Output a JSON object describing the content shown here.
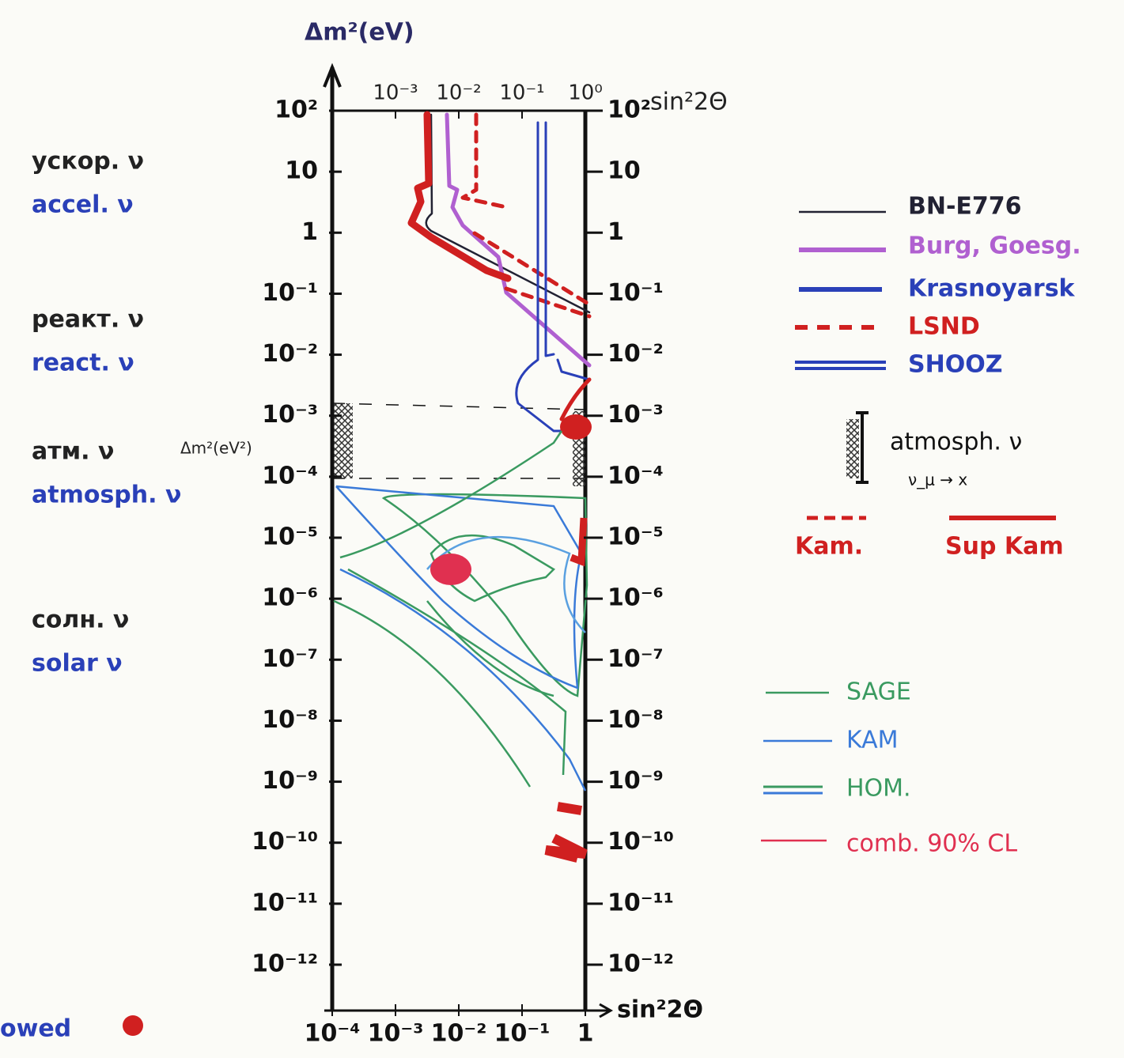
{
  "chart_data": {
    "type": "sketch",
    "y_title": "Δm²(eV)",
    "x_title": "sin²2Θ",
    "top_x_title": "sin²2Θ",
    "atm_axis_note": "Δm²(eV²)",
    "ylim": [
      1e-12,
      100
    ],
    "yticks": [
      {
        "value": 100,
        "label": "10²"
      },
      10,
      1,
      {
        "value": 0.1,
        "label": "10⁻¹"
      },
      {
        "value": 0.01,
        "label": "10⁻²"
      },
      {
        "value": 0.001,
        "label": "10⁻³"
      },
      {
        "value": 0.0001,
        "label": "10⁻⁴"
      },
      {
        "value": 1e-05,
        "label": "10⁻⁵"
      },
      {
        "value": 1e-06,
        "label": "10⁻⁶"
      },
      {
        "value": 1e-07,
        "label": "10⁻⁷"
      },
      {
        "value": 1e-08,
        "label": "10⁻⁸"
      },
      {
        "value": 1e-09,
        "label": "10⁻⁹"
      },
      {
        "value": 1e-10,
        "label": "10⁻¹⁰"
      },
      {
        "value": 1e-11,
        "label": "10⁻¹¹"
      },
      {
        "value": 1e-12,
        "label": "10⁻¹²"
      }
    ],
    "xlim": [
      0.0001,
      1
    ],
    "xticks": [
      {
        "value": 0.0001,
        "label": "10⁻⁴"
      },
      {
        "value": 0.001,
        "label": "10⁻³"
      },
      {
        "value": 0.01,
        "label": "10⁻²"
      },
      {
        "value": 0.1,
        "label": "10⁻¹"
      },
      1
    ],
    "top_xticks": [
      {
        "value": 0.001,
        "label": "10⁻³"
      },
      {
        "value": 0.01,
        "label": "10⁻²"
      },
      {
        "value": 0.1,
        "label": "10⁻¹"
      },
      {
        "value": 1,
        "label": "10⁰"
      }
    ],
    "regions": [
      {
        "ru": "ускор. ν",
        "en": "accel. ν"
      },
      {
        "ru": "реакт. ν",
        "en": "react. ν"
      },
      {
        "ru": "атм. ν",
        "en": "atmosph. ν"
      },
      {
        "ru": "солн. ν",
        "en": "solar ν"
      }
    ],
    "footnote": "owed",
    "legend_upper": [
      {
        "name": "BN-E776",
        "color": "#222233"
      },
      {
        "name": "Burg, Goesg.",
        "color": "#b060d0"
      },
      {
        "name": "Krasnoyarsk",
        "color": "#2a40b8"
      },
      {
        "name": "LSND",
        "color": "#d02020"
      },
      {
        "name": "SHOOZ",
        "color": "#2a40b8"
      }
    ],
    "atm_legend": {
      "name": "atmosph. ν",
      "note": "ν_μ → x"
    },
    "kam_legend": [
      {
        "name": "Kam.",
        "color": "#d02020"
      },
      {
        "name": "Sup Kam",
        "color": "#d02020"
      }
    ],
    "legend_lower": [
      {
        "name": "SAGE",
        "color": "#3a9a60"
      },
      {
        "name": "KAM",
        "color": "#3a7ad8"
      },
      {
        "name": "HOM.",
        "color": "#3a9a60"
      },
      {
        "name": "comb. 90% CL",
        "color": "#e03050"
      }
    ]
  }
}
